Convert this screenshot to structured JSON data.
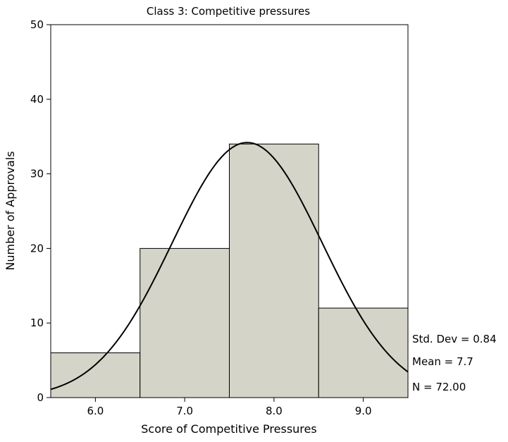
{
  "chart_data": {
    "type": "bar",
    "subtype": "histogram",
    "title": "Class 3: Competitive pressures",
    "xlabel": "Score of Competitive Pressures",
    "ylabel": "Number of Approvals",
    "categories": [
      "6.0",
      "7.0",
      "8.0",
      "9.0"
    ],
    "bin_centers": [
      6.0,
      7.0,
      8.0,
      9.0
    ],
    "bin_width": 1.0,
    "values": [
      6,
      20,
      34,
      12
    ],
    "xlim": [
      5.5,
      9.5
    ],
    "ylim": [
      0,
      50
    ],
    "yticks": [
      0,
      10,
      20,
      30,
      40,
      50
    ],
    "grid": false,
    "normal_curve": {
      "mean": 7.7,
      "std": 0.84,
      "n": 72
    },
    "stats": [
      "Std. Dev = 0.84",
      "Mean = 7.7",
      "N = 72.00"
    ],
    "colors": {
      "bar_fill": "#d4d4c8",
      "bar_stroke": "#000000",
      "curve": "#000000"
    }
  }
}
